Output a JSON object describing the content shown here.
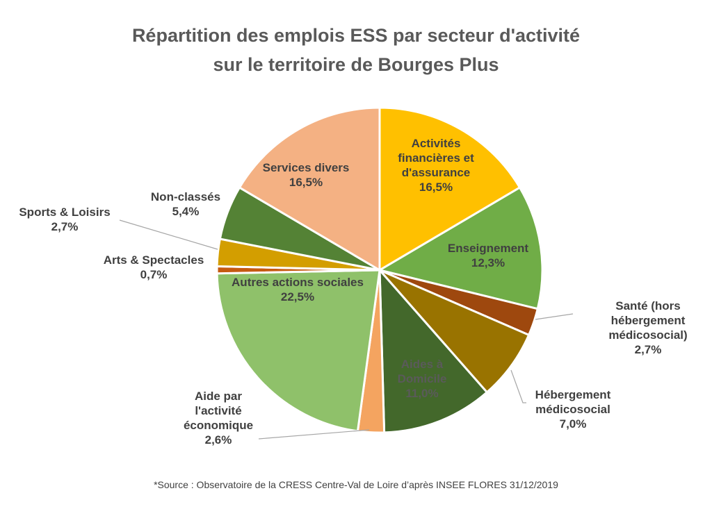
{
  "chart_data": {
    "type": "pie",
    "title_lines": [
      "Répartition des emplois ESS par secteur d'activité",
      "sur le territoire de Bourges Plus"
    ],
    "slices": [
      {
        "label": [
          "Activités",
          "financières et",
          "d'assurance"
        ],
        "value_label": "16,5%",
        "value": 16.5,
        "color": "#ffc000"
      },
      {
        "label": [
          "Enseignement"
        ],
        "value_label": "12,3%",
        "value": 12.3,
        "color": "#70ad47"
      },
      {
        "label": [
          "Santé (hors",
          "hébergement",
          "médicosocial)"
        ],
        "value_label": "2,7%",
        "value": 2.7,
        "color": "#9e480e"
      },
      {
        "label": [
          "Hébergement",
          "médicosocial"
        ],
        "value_label": "7,0%",
        "value": 7.0,
        "color": "#997300"
      },
      {
        "label": [
          "Aides à",
          "Domicile"
        ],
        "value_label": "11,0%",
        "value": 11.0,
        "color": "#43682b"
      },
      {
        "label": [
          "Aide par",
          "l'activité",
          "économique"
        ],
        "value_label": "2,6%",
        "value": 2.6,
        "color": "#f4a460"
      },
      {
        "label": [
          "Autres actions sociales"
        ],
        "value_label": "22,5%",
        "value": 22.5,
        "color": "#8fc16a"
      },
      {
        "label": [
          "Arts & Spectacles"
        ],
        "value_label": "0,7%",
        "value": 0.7,
        "color": "#c55a11"
      },
      {
        "label": [
          "Sports & Loisirs"
        ],
        "value_label": "2,7%",
        "value": 2.7,
        "color": "#d39e00"
      },
      {
        "label": [
          "Non-classés"
        ],
        "value_label": "5,4%",
        "value": 5.4,
        "color": "#548235"
      },
      {
        "label": [
          "Services divers"
        ],
        "value_label": "16,5%",
        "value": 16.5,
        "color": "#f4b183"
      }
    ]
  },
  "source": "*Source : Observatoire de la CRESS Centre-Val de Loire d’après INSEE FLORES 31/12/2019"
}
